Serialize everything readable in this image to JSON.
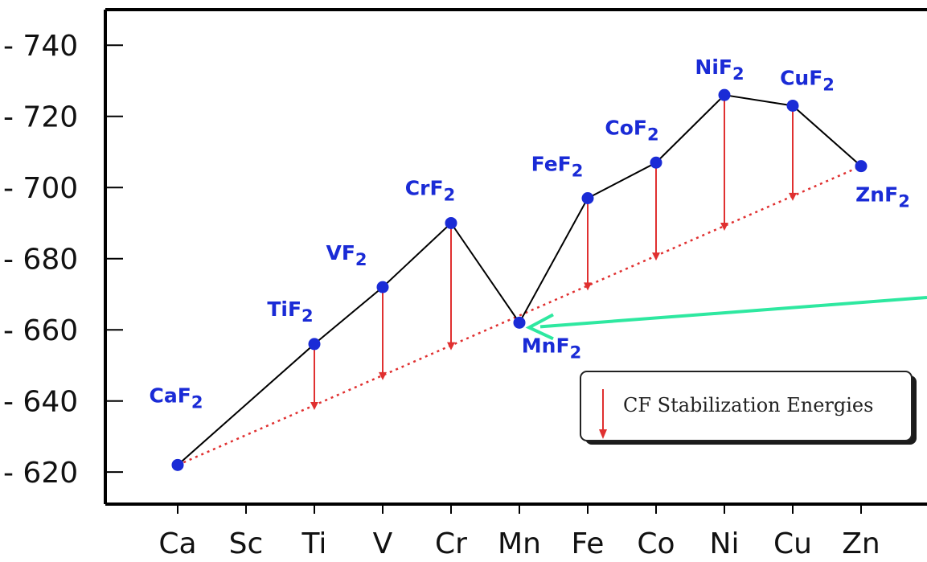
{
  "chart_data": {
    "type": "line",
    "categories": [
      "Ca",
      "Sc",
      "Ti",
      "V",
      "Cr",
      "Mn",
      "Fe",
      "Co",
      "Ni",
      "Cu",
      "Zn"
    ],
    "yticks": [
      620,
      640,
      660,
      680,
      700,
      720,
      740
    ],
    "ylim": [
      611,
      750
    ],
    "grid": false,
    "series": [
      {
        "points": [
          {
            "x": "Ca",
            "y": 622,
            "label": "CaF",
            "sub": "2"
          },
          {
            "x": "Ti",
            "y": 656,
            "label": "TiF",
            "sub": "2"
          },
          {
            "x": "V",
            "y": 672,
            "label": "VF",
            "sub": "2"
          },
          {
            "x": "Cr",
            "y": 690,
            "label": "CrF",
            "sub": "2"
          },
          {
            "x": "Mn",
            "y": 662,
            "label": "MnF",
            "sub": "2"
          },
          {
            "x": "Fe",
            "y": 697,
            "label": "FeF",
            "sub": "2"
          },
          {
            "x": "Co",
            "y": 707,
            "label": "CoF",
            "sub": "2"
          },
          {
            "x": "Ni",
            "y": 726,
            "label": "NiF",
            "sub": "2"
          },
          {
            "x": "Cu",
            "y": 723,
            "label": "CuF",
            "sub": "2"
          },
          {
            "x": "Zn",
            "y": 706,
            "label": "ZnF",
            "sub": "2"
          }
        ]
      }
    ],
    "baseline": {
      "from": {
        "x": "Ca",
        "y": 622
      },
      "to": {
        "x": "Zn",
        "y": 706
      },
      "style": "dotted"
    },
    "stabilization_arrows": [
      "Ti",
      "V",
      "Cr",
      "Fe",
      "Co",
      "Ni",
      "Cu"
    ],
    "legend": {
      "label": "CF Stabilization Energies",
      "position": "lower-right"
    },
    "annotation_arrow": {
      "points_to": "Mn",
      "color": "#2ee8a0"
    },
    "colors": {
      "point": "#1a2bd6",
      "line": "#000000",
      "arrow": "#e03030",
      "baseline": "#e03030"
    }
  }
}
